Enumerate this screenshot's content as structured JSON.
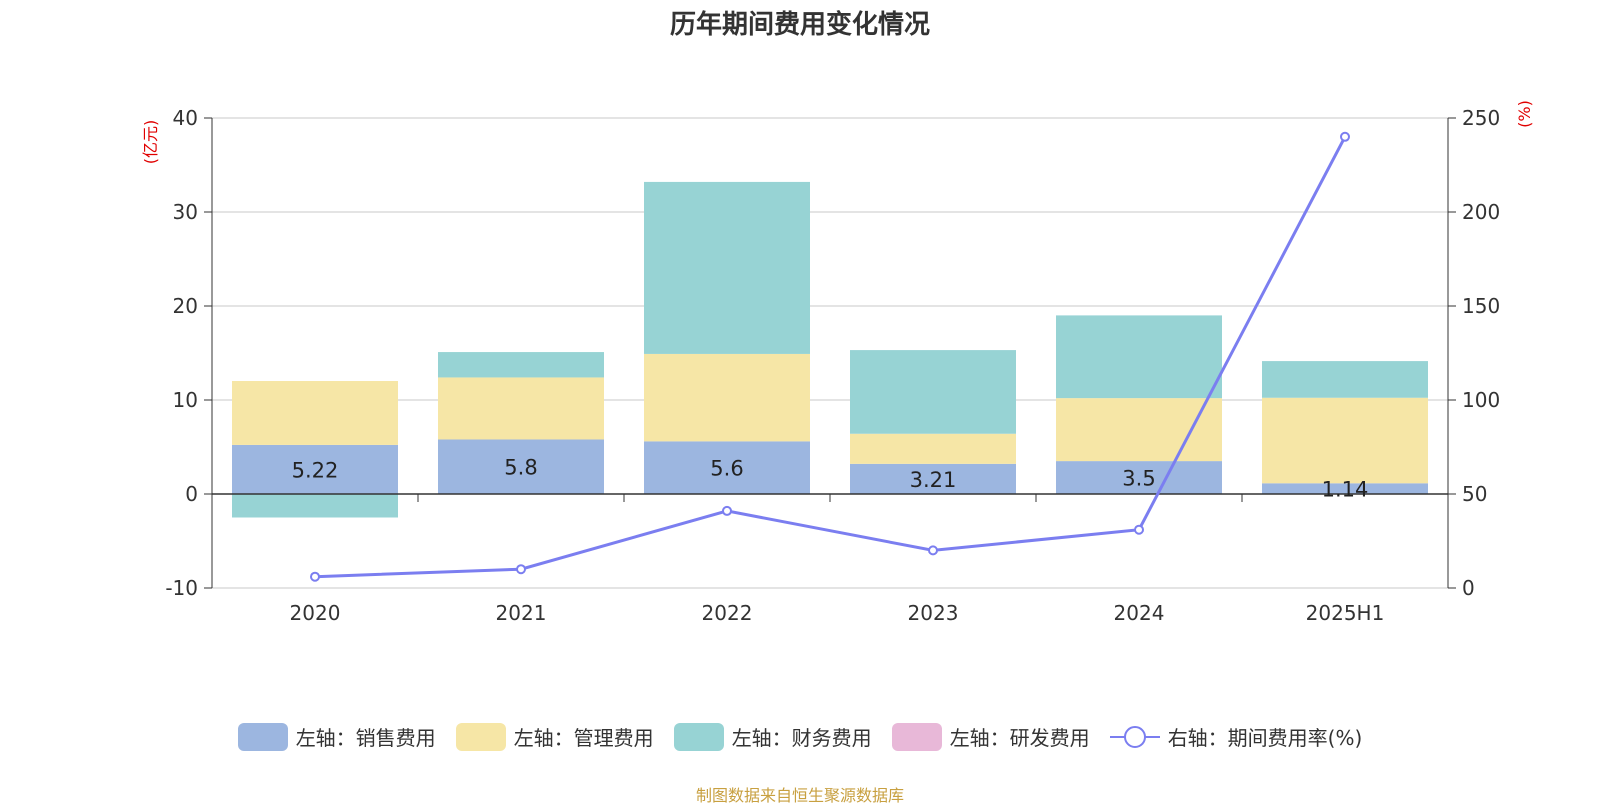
{
  "title": "历年期间费用变化情况",
  "source": "制图数据来自恒生聚源数据库",
  "colors": {
    "sales": "#9cb6e0",
    "admin": "#f6e6a6",
    "finance": "#97d3d4",
    "rnd": "#e8b8d8",
    "rate": "#7b7ef0",
    "axis_unit": "#e00000"
  },
  "legend": [
    {
      "key": "sales",
      "label": "左轴：销售费用"
    },
    {
      "key": "admin",
      "label": "左轴：管理费用"
    },
    {
      "key": "finance",
      "label": "左轴：财务费用"
    },
    {
      "key": "rnd",
      "label": "左轴：研发费用"
    },
    {
      "key": "rate",
      "label": "右轴：期间费用率(%)"
    }
  ],
  "chart_data": {
    "type": "bar",
    "stacked": true,
    "categories": [
      "2020",
      "2021",
      "2022",
      "2023",
      "2024",
      "2025H1"
    ],
    "series": [
      {
        "name": "左轴：销售费用",
        "key": "sales",
        "axis": "left",
        "values": [
          5.22,
          5.8,
          5.6,
          3.21,
          3.5,
          1.14
        ],
        "labels": [
          "5.22",
          "5.8",
          "5.6",
          "3.21",
          "3.5",
          "1.14"
        ]
      },
      {
        "name": "左轴：管理费用",
        "key": "admin",
        "axis": "left",
        "values": [
          6.8,
          6.6,
          9.3,
          3.2,
          6.7,
          9.1
        ]
      },
      {
        "name": "左轴：财务费用",
        "key": "finance",
        "axis": "left",
        "values": [
          -2.5,
          2.7,
          18.3,
          8.9,
          8.8,
          3.9
        ]
      },
      {
        "name": "左轴：研发费用",
        "key": "rnd",
        "axis": "left",
        "values": [
          0,
          0,
          0,
          0,
          0,
          0
        ]
      },
      {
        "name": "右轴：期间费用率(%)",
        "key": "rate",
        "axis": "right",
        "type": "line",
        "values": [
          6,
          10,
          41,
          20,
          31,
          240
        ]
      }
    ],
    "left_axis": {
      "unit": "(亿元)",
      "min": -10,
      "max": 40,
      "ticks": [
        -10,
        0,
        10,
        20,
        30,
        40
      ]
    },
    "right_axis": {
      "unit": "(%)",
      "min": 0,
      "max": 250,
      "ticks": [
        0,
        50,
        100,
        150,
        200,
        250
      ]
    },
    "grid": true,
    "legend_position": "bottom"
  }
}
